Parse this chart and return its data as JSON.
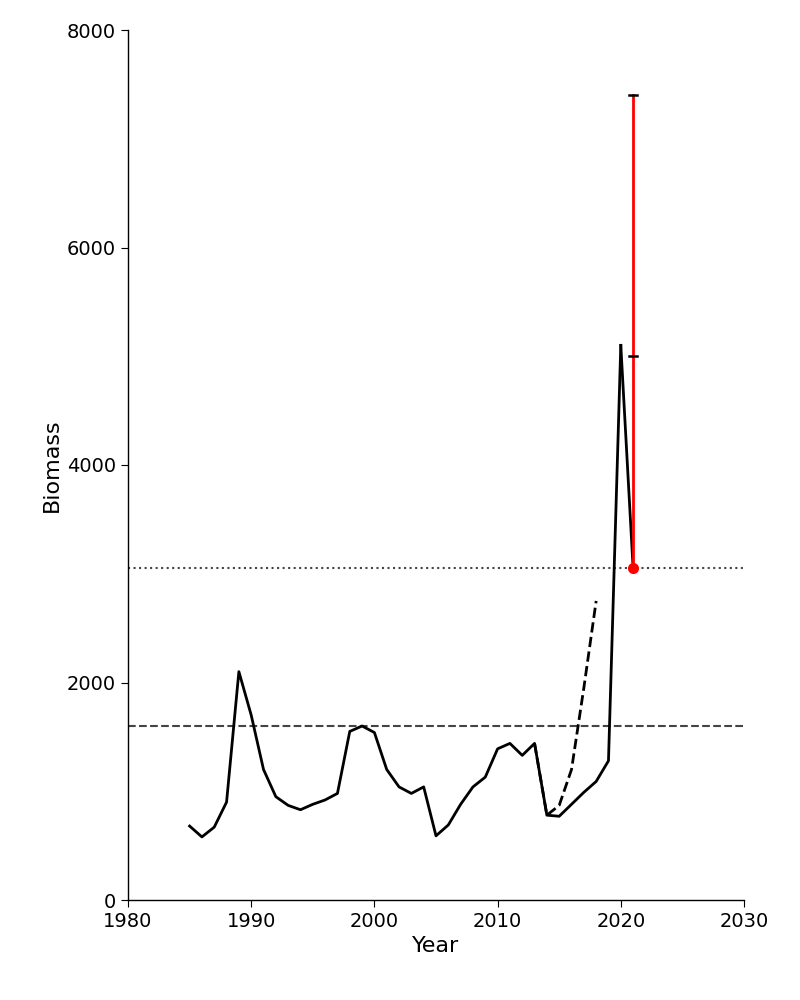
{
  "title": "",
  "xlabel": "Year",
  "ylabel": "Biomass",
  "xlim": [
    1980,
    2030
  ],
  "ylim": [
    0,
    8000
  ],
  "yticks": [
    0,
    2000,
    4000,
    6000,
    8000
  ],
  "xticks": [
    1980,
    1990,
    2000,
    2010,
    2020,
    2030
  ],
  "solid_line_years": [
    1985,
    1986,
    1987,
    1988,
    1989,
    1990,
    1991,
    1992,
    1993,
    1994,
    1995,
    1996,
    1997,
    1998,
    1999,
    2000,
    2001,
    2002,
    2003,
    2004,
    2005,
    2006,
    2007,
    2008,
    2009,
    2010,
    2011,
    2012,
    2013,
    2014,
    2015,
    2016,
    2017,
    2018,
    2019,
    2020
  ],
  "solid_line_values": [
    680,
    580,
    670,
    900,
    2100,
    1700,
    1200,
    950,
    870,
    830,
    880,
    920,
    980,
    1550,
    1600,
    1540,
    1200,
    1040,
    980,
    1040,
    590,
    690,
    880,
    1040,
    1130,
    1390,
    1440,
    1330,
    1440,
    780,
    770,
    880,
    990,
    1090,
    1280,
    5100
  ],
  "dashed_line_years": [
    2013,
    2014,
    2015,
    2016,
    2017,
    2018
  ],
  "dashed_line_values": [
    1440,
    780,
    870,
    1200,
    1950,
    2750
  ],
  "red_point_year": 2021,
  "red_point_value": 3050,
  "red_errorbar_low": 3050,
  "red_errorbar_high": 7400,
  "red_errorbar_mid": 5000,
  "hline_dotted_value": 3050,
  "hline_dashed_value": 1600,
  "line_color": "#000000",
  "red_color": "#ff0000",
  "hline_dotted_color": "#444444",
  "hline_dashed_color": "#444444",
  "figsize": [
    8.0,
    10.0
  ],
  "dpi": 100
}
